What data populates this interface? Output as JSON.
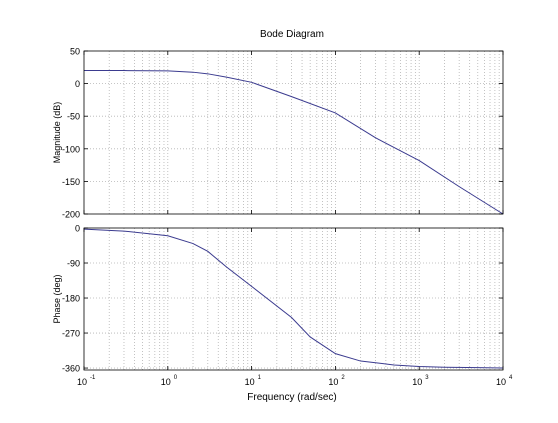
{
  "chart_data": {
    "type": "line",
    "title": "Bode Diagram",
    "xlabel": "Frequency  (rad/sec)",
    "x_scale": "log",
    "xlim": [
      0.1,
      10000
    ],
    "x_tick_bases": [
      "10",
      "10",
      "10",
      "10",
      "10",
      "10"
    ],
    "x_tick_exponents": [
      "-1",
      "0",
      "1",
      "2",
      "3",
      "4"
    ],
    "grid": "dotted",
    "panels": [
      {
        "ylabel": "Magnitude (dB)",
        "ylim": [
          -200,
          50
        ],
        "ytick_values": [
          50,
          0,
          -50,
          -100,
          -150,
          -200
        ],
        "ytick_labels": [
          "50",
          "0",
          "-50",
          "-100",
          "-150",
          "-200"
        ],
        "series": [
          {
            "x": [
              0.1,
              0.3,
              1,
              2,
              3,
              5,
              10,
              30,
              100,
              300,
              1000,
              3000,
              10000
            ],
            "y": [
              20,
              20,
              19.5,
              17.5,
              15,
              10,
              2,
              -20,
              -45,
              -83,
              -118,
              -158,
              -200
            ]
          }
        ]
      },
      {
        "ylabel": "Phase (deg)",
        "ylim": [
          -365,
          0
        ],
        "ytick_values": [
          0,
          -90,
          -180,
          -270,
          -360
        ],
        "ytick_labels": [
          "0",
          "-90",
          "-180",
          "-270",
          "-360"
        ],
        "series": [
          {
            "x": [
              0.1,
              0.3,
              1,
              2,
              3,
              5,
              10,
              30,
              50,
              100,
              200,
              500,
              1000,
              2000,
              5000,
              10000
            ],
            "y": [
              -3,
              -8,
              -20,
              -40,
              -60,
              -100,
              -150,
              -230,
              -280,
              -323,
              -342,
              -352,
              -356,
              -358,
              -359,
              -360
            ]
          }
        ]
      }
    ]
  },
  "colors": {
    "line": "#3b3b8f",
    "grid": "#b3b3b3",
    "axes": "#000000"
  }
}
